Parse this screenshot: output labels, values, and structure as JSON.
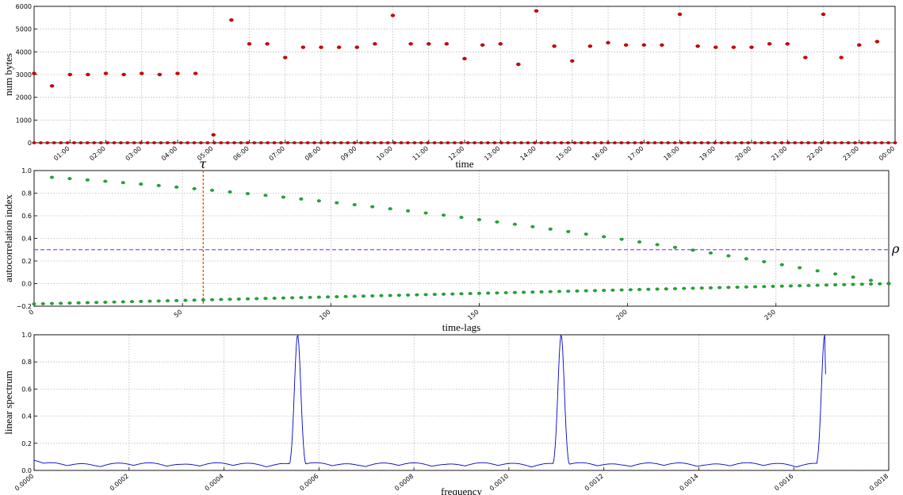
{
  "chart_data": [
    {
      "type": "scatter",
      "xlabel": "time",
      "ylabel": "num bytes",
      "ylim": [
        0,
        6000
      ],
      "yticks": [
        "0",
        "1000",
        "2000",
        "3000",
        "4000",
        "5000",
        "6000"
      ],
      "xlim": [
        0,
        24
      ],
      "xtick_labels": [
        "01:00",
        "02:00",
        "03:00",
        "04:00",
        "05:00",
        "06:00",
        "07:00",
        "08:00",
        "09:00",
        "10:00",
        "11:00",
        "12:00",
        "13:00",
        "14:00",
        "15:00",
        "16:00",
        "17:00",
        "18:00",
        "19:00",
        "20:00",
        "21:00",
        "22:00",
        "23:00",
        "00:00"
      ],
      "grid": true,
      "color": "#cc0000",
      "x": [
        0.0,
        0.5,
        1.0,
        1.5,
        2.0,
        2.5,
        3.0,
        3.5,
        4.0,
        4.5,
        5.0,
        5.5,
        6.0,
        6.5,
        7.0,
        7.5,
        8.0,
        8.5,
        9.0,
        9.5,
        10.0,
        10.5,
        11.0,
        11.5,
        12.0,
        12.5,
        13.0,
        13.5,
        14.0,
        14.5,
        15.0,
        15.5,
        16.0,
        16.5,
        17.0,
        17.5,
        18.0,
        18.5,
        19.0,
        19.5,
        20.0,
        20.5,
        21.0,
        21.5,
        22.0,
        22.5,
        23.0,
        23.5
      ],
      "values": [
        3050,
        2500,
        3000,
        3000,
        3050,
        3000,
        3050,
        3000,
        3050,
        3050,
        350,
        5400,
        4350,
        4350,
        3750,
        4200,
        4200,
        4200,
        4200,
        4350,
        5600,
        4350,
        4350,
        4350,
        3700,
        4300,
        4350,
        3450,
        5800,
        4250,
        3600,
        4250,
        4400,
        4300,
        4300,
        4300,
        5650,
        4250,
        4200,
        4200,
        4200,
        4350,
        4350,
        3750,
        5650,
        3750,
        4300,
        4450
      ],
      "baseline_value": 0,
      "baseline_count": 130
    },
    {
      "type": "scatter",
      "xlabel": "time-lags",
      "ylabel": "autocorrelation index",
      "ylim": [
        -0.2,
        1.0
      ],
      "yticks": [
        "−0.2",
        "0.0",
        "0.2",
        "0.4",
        "0.6",
        "0.8",
        "1.0"
      ],
      "xlim": [
        0,
        288
      ],
      "xticks": [
        "0",
        "50",
        "100",
        "150",
        "200",
        "250"
      ],
      "grid": true,
      "color": "#22aa22",
      "series": [
        {
          "x_start": 6,
          "x_step": 6,
          "count": 48,
          "y_start": 0.94,
          "y_end": 0.0
        },
        {
          "x_start": 0,
          "x_step": 3,
          "count": 97,
          "y_start": -0.18,
          "y_end": 0.0
        }
      ],
      "threshold": {
        "value": 0.3,
        "label": "ρ",
        "color": "#a040ff"
      },
      "tau": {
        "x": 57,
        "label": "τ",
        "color": "#e06000"
      }
    },
    {
      "type": "line",
      "xlabel": "frequency",
      "ylabel": "linear spectrum",
      "ylim": [
        0,
        1.0
      ],
      "yticks": [
        "0.0",
        "0.2",
        "0.4",
        "0.6",
        "0.8",
        "1.0"
      ],
      "xlim": [
        0,
        0.0018
      ],
      "xticks": [
        "0.0000",
        "0.0002",
        "0.0004",
        "0.0006",
        "0.0008",
        "0.0010",
        "0.0012",
        "0.0014",
        "0.0016",
        "0.0018"
      ],
      "grid": true,
      "color": "#0000cc",
      "peaks": [
        0.000555,
        0.00111,
        0.001665
      ],
      "x_end": 0.001667,
      "end_value": 0.71
    }
  ]
}
